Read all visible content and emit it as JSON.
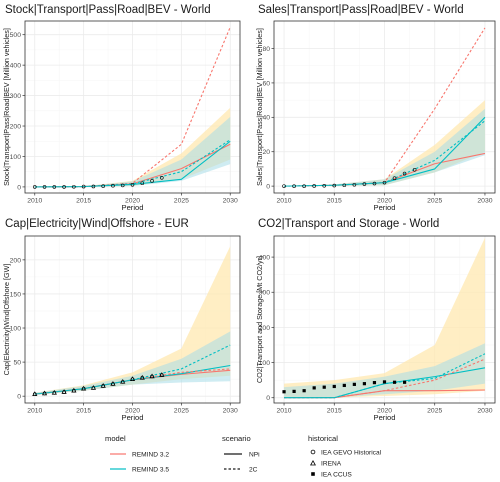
{
  "colors": {
    "remind32": "#F8766D",
    "remind35": "#00BFC4",
    "band32": "#FFE8B0",
    "band35": "#A8DDE8",
    "grid_major": "#EBEBEB",
    "grid_minor": "#F5F5F5",
    "panel_border": "#333333"
  },
  "chart_data": [
    {
      "type": "line",
      "title": "Stock|Transport|Pass|Road|BEV - World",
      "xlabel": "Period",
      "ylabel": "Stock|Transport|Pass|Road|BEV [Million vehicles]",
      "xlim": [
        2009,
        2031
      ],
      "ylim": [
        -20,
        545
      ],
      "x_ticks": [
        2010,
        2015,
        2020,
        2025,
        2030
      ],
      "y_ticks": [
        0,
        100,
        200,
        300,
        400,
        500
      ],
      "x_tick_labels": [
        "2010",
        "2015",
        "2020",
        "2025",
        "2030"
      ],
      "y_tick_labels": [
        "0",
        "100",
        "200",
        "300",
        "400",
        "500"
      ],
      "grid": true,
      "series": [
        {
          "model": "REMIND 3.2",
          "scenario": "NPi",
          "x": [
            2010,
            2015,
            2020,
            2025,
            2030
          ],
          "y": [
            0,
            1,
            10,
            60,
            140
          ]
        },
        {
          "model": "REMIND 3.5",
          "scenario": "NPi",
          "x": [
            2010,
            2015,
            2020,
            2025,
            2030
          ],
          "y": [
            0,
            1,
            8,
            25,
            150
          ]
        },
        {
          "model": "REMIND 3.2",
          "scenario": "2C",
          "x": [
            2010,
            2015,
            2020,
            2025,
            2030
          ],
          "y": [
            0,
            1,
            12,
            140,
            525
          ]
        },
        {
          "model": "REMIND 3.5",
          "scenario": "2C",
          "x": [
            2010,
            2015,
            2020,
            2025,
            2030
          ],
          "y": [
            0,
            1,
            10,
            50,
            155
          ]
        }
      ],
      "bands": [
        {
          "model": "REMIND 3.2",
          "x": [
            2010,
            2015,
            2020,
            2025,
            2030
          ],
          "lower": [
            0,
            0,
            3,
            25,
            90
          ],
          "upper": [
            0,
            2,
            20,
            110,
            260
          ]
        },
        {
          "model": "REMIND 3.5",
          "x": [
            2010,
            2015,
            2020,
            2025,
            2030
          ],
          "lower": [
            0,
            0,
            3,
            20,
            75
          ],
          "upper": [
            0,
            2,
            18,
            90,
            230
          ]
        }
      ],
      "historical": [
        {
          "source": "IEA GEVO Historical",
          "x": [
            2010,
            2011,
            2012,
            2013,
            2014,
            2015,
            2016,
            2017,
            2018,
            2019,
            2020,
            2021,
            2022,
            2023
          ],
          "y": [
            0,
            0,
            0,
            0,
            0.5,
            1,
            1.5,
            2.5,
            4,
            5,
            7,
            12,
            20,
            30
          ]
        }
      ]
    },
    {
      "type": "line",
      "title": "Sales|Transport|Pass|Road|BEV - World",
      "xlabel": "Period",
      "ylabel": "Sales|Transport|Pass|Road|BEV [Million vehicles]",
      "xlim": [
        2009,
        2031
      ],
      "ylim": [
        -4,
        96
      ],
      "x_ticks": [
        2010,
        2015,
        2020,
        2025,
        2030
      ],
      "y_ticks": [
        0,
        20,
        40,
        60,
        80
      ],
      "x_tick_labels": [
        "2010",
        "2015",
        "2020",
        "2025",
        "2030"
      ],
      "y_tick_labels": [
        "0",
        "20",
        "40",
        "60",
        "80"
      ],
      "grid": true,
      "series": [
        {
          "model": "REMIND 3.2",
          "scenario": "NPi",
          "x": [
            2010,
            2015,
            2020,
            2025,
            2030
          ],
          "y": [
            0,
            0.5,
            2,
            13,
            19
          ]
        },
        {
          "model": "REMIND 3.5",
          "scenario": "NPi",
          "x": [
            2010,
            2015,
            2020,
            2025,
            2030
          ],
          "y": [
            0,
            0.5,
            2,
            10,
            40
          ]
        },
        {
          "model": "REMIND 3.2",
          "scenario": "2C",
          "x": [
            2010,
            2015,
            2020,
            2025,
            2030
          ],
          "y": [
            0,
            0.5,
            2,
            45,
            92
          ]
        },
        {
          "model": "REMIND 3.5",
          "scenario": "2C",
          "x": [
            2010,
            2015,
            2020,
            2025,
            2030
          ],
          "y": [
            0,
            0.5,
            2,
            15,
            38
          ]
        }
      ],
      "bands": [
        {
          "model": "REMIND 3.2",
          "x": [
            2010,
            2015,
            2020,
            2025,
            2030
          ],
          "lower": [
            0,
            0,
            0.5,
            8,
            20
          ],
          "upper": [
            0,
            1,
            4,
            24,
            50
          ]
        },
        {
          "model": "REMIND 3.5",
          "x": [
            2010,
            2015,
            2020,
            2025,
            2030
          ],
          "lower": [
            0,
            0,
            0.5,
            8,
            18
          ],
          "upper": [
            0,
            1,
            4,
            20,
            45
          ]
        }
      ],
      "historical": [
        {
          "source": "IEA GEVO Historical",
          "x": [
            2010,
            2011,
            2012,
            2013,
            2014,
            2015,
            2016,
            2017,
            2018,
            2019,
            2020,
            2021,
            2022,
            2023
          ],
          "y": [
            0,
            0,
            0,
            0.1,
            0.2,
            0.3,
            0.5,
            0.8,
            1.2,
            1.5,
            2,
            4.6,
            7.3,
            9.5
          ]
        }
      ]
    },
    {
      "type": "line",
      "title": "Cap|Electricity|Wind|Offshore - EUR",
      "xlabel": "Period",
      "ylabel": "Cap|Electricity|Wind|Offshore [GW]",
      "xlim": [
        2009,
        2031
      ],
      "ylim": [
        -10,
        235
      ],
      "x_ticks": [
        2010,
        2015,
        2020,
        2025,
        2030
      ],
      "y_ticks": [
        0,
        50,
        100,
        150,
        200
      ],
      "x_tick_labels": [
        "2010",
        "2015",
        "2020",
        "2025",
        "2030"
      ],
      "y_tick_labels": [
        "0",
        "50",
        "100",
        "150",
        "200"
      ],
      "grid": true,
      "series": [
        {
          "model": "REMIND 3.2",
          "scenario": "NPi",
          "x": [
            2010,
            2015,
            2020,
            2025,
            2030
          ],
          "y": [
            3,
            11,
            24,
            32,
            38
          ]
        },
        {
          "model": "REMIND 3.5",
          "scenario": "NPi",
          "x": [
            2010,
            2015,
            2020,
            2025,
            2030
          ],
          "y": [
            3,
            11,
            24,
            33,
            45
          ]
        },
        {
          "model": "REMIND 3.2",
          "scenario": "2C",
          "x": [
            2010,
            2015,
            2020,
            2025,
            2030
          ],
          "y": [
            3,
            11,
            24,
            35,
            40
          ]
        },
        {
          "model": "REMIND 3.5",
          "scenario": "2C",
          "x": [
            2010,
            2015,
            2020,
            2025,
            2030
          ],
          "y": [
            3,
            11,
            24,
            40,
            75
          ]
        }
      ],
      "bands": [
        {
          "model": "REMIND 3.2",
          "x": [
            2010,
            2015,
            2020,
            2025,
            2030
          ],
          "lower": [
            2,
            8,
            17,
            25,
            30
          ],
          "upper": [
            5,
            16,
            35,
            70,
            220
          ]
        },
        {
          "model": "REMIND 3.5",
          "x": [
            2010,
            2015,
            2020,
            2025,
            2030
          ],
          "lower": [
            2,
            8,
            17,
            20,
            22
          ],
          "upper": [
            5,
            15,
            30,
            55,
            95
          ]
        }
      ],
      "historical": [
        {
          "source": "IEA GEVO Historical",
          "x": [
            2010,
            2011,
            2012,
            2013,
            2014,
            2015,
            2016,
            2017,
            2018,
            2019,
            2020,
            2021,
            2022,
            2023
          ],
          "y": [
            3,
            4,
            5,
            6,
            8,
            11,
            12,
            15,
            18,
            21,
            25,
            27,
            29,
            31
          ]
        },
        {
          "source": "IRENA",
          "x": [
            2010,
            2011,
            2012,
            2013,
            2014,
            2015,
            2016,
            2017,
            2018,
            2019,
            2020,
            2021,
            2022,
            2023
          ],
          "y": [
            3,
            4,
            5,
            6,
            8,
            11,
            12,
            15,
            18,
            21,
            25,
            27,
            29,
            31
          ]
        }
      ]
    },
    {
      "type": "line",
      "title": "CO2|Transport and Storage - World",
      "xlabel": "Period",
      "ylabel": "CO2|Transport and Storage [Mt CO2/yr]",
      "xlim": [
        2009,
        2031
      ],
      "ylim": [
        -15,
        460
      ],
      "x_ticks": [
        2010,
        2015,
        2020,
        2025,
        2030
      ],
      "y_ticks": [
        0,
        100,
        200,
        300,
        400
      ],
      "x_tick_labels": [
        "2010",
        "2015",
        "2020",
        "2025",
        "2030"
      ],
      "y_tick_labels": [
        "0",
        "100",
        "200",
        "300",
        "400"
      ],
      "grid": true,
      "series": [
        {
          "model": "REMIND 3.2",
          "scenario": "NPi",
          "x": [
            2010,
            2015,
            2020,
            2025,
            2030
          ],
          "y": [
            0,
            0,
            20,
            20,
            22
          ]
        },
        {
          "model": "REMIND 3.5",
          "scenario": "NPi",
          "x": [
            2010,
            2015,
            2020,
            2025,
            2030
          ],
          "y": [
            0,
            0,
            40,
            60,
            85
          ]
        },
        {
          "model": "REMIND 3.2",
          "scenario": "2C",
          "x": [
            2010,
            2015,
            2020,
            2025,
            2030
          ],
          "y": [
            0,
            0,
            20,
            50,
            110
          ]
        },
        {
          "model": "REMIND 3.5",
          "scenario": "2C",
          "x": [
            2010,
            2015,
            2020,
            2025,
            2030
          ],
          "y": [
            0,
            0,
            40,
            55,
            125
          ]
        }
      ],
      "bands": [
        {
          "model": "REMIND 3.2",
          "x": [
            2010,
            2015,
            2020,
            2025,
            2030
          ],
          "lower": [
            0,
            0,
            5,
            10,
            20
          ],
          "upper": [
            40,
            50,
            70,
            150,
            455
          ]
        },
        {
          "model": "REMIND 3.5",
          "x": [
            2010,
            2015,
            2020,
            2025,
            2030
          ],
          "lower": [
            0,
            0,
            10,
            20,
            40
          ],
          "upper": [
            30,
            40,
            60,
            90,
            155
          ]
        }
      ],
      "historical": [
        {
          "source": "IEA CCUS",
          "x": [
            2010,
            2011,
            2012,
            2013,
            2014,
            2015,
            2016,
            2017,
            2018,
            2019,
            2020,
            2021,
            2022
          ],
          "y": [
            17,
            18,
            20,
            28,
            30,
            32,
            35,
            38,
            40,
            43,
            45,
            44,
            44
          ]
        }
      ]
    }
  ],
  "legend": {
    "model": {
      "title": "model",
      "items": [
        {
          "label": "REMIND 3.2",
          "key": "remind32"
        },
        {
          "label": "REMIND 3.5",
          "key": "remind35"
        }
      ]
    },
    "scenario": {
      "title": "scenario",
      "items": [
        {
          "label": "NPi",
          "dash": "solid"
        },
        {
          "label": "2C",
          "dash": "dashed"
        }
      ]
    },
    "historical": {
      "title": "historical",
      "items": [
        {
          "label": "IEA GEVO Historical",
          "shape": "circle"
        },
        {
          "label": "IRENA",
          "shape": "triangle"
        },
        {
          "label": "IEA CCUS",
          "shape": "square"
        }
      ]
    }
  }
}
